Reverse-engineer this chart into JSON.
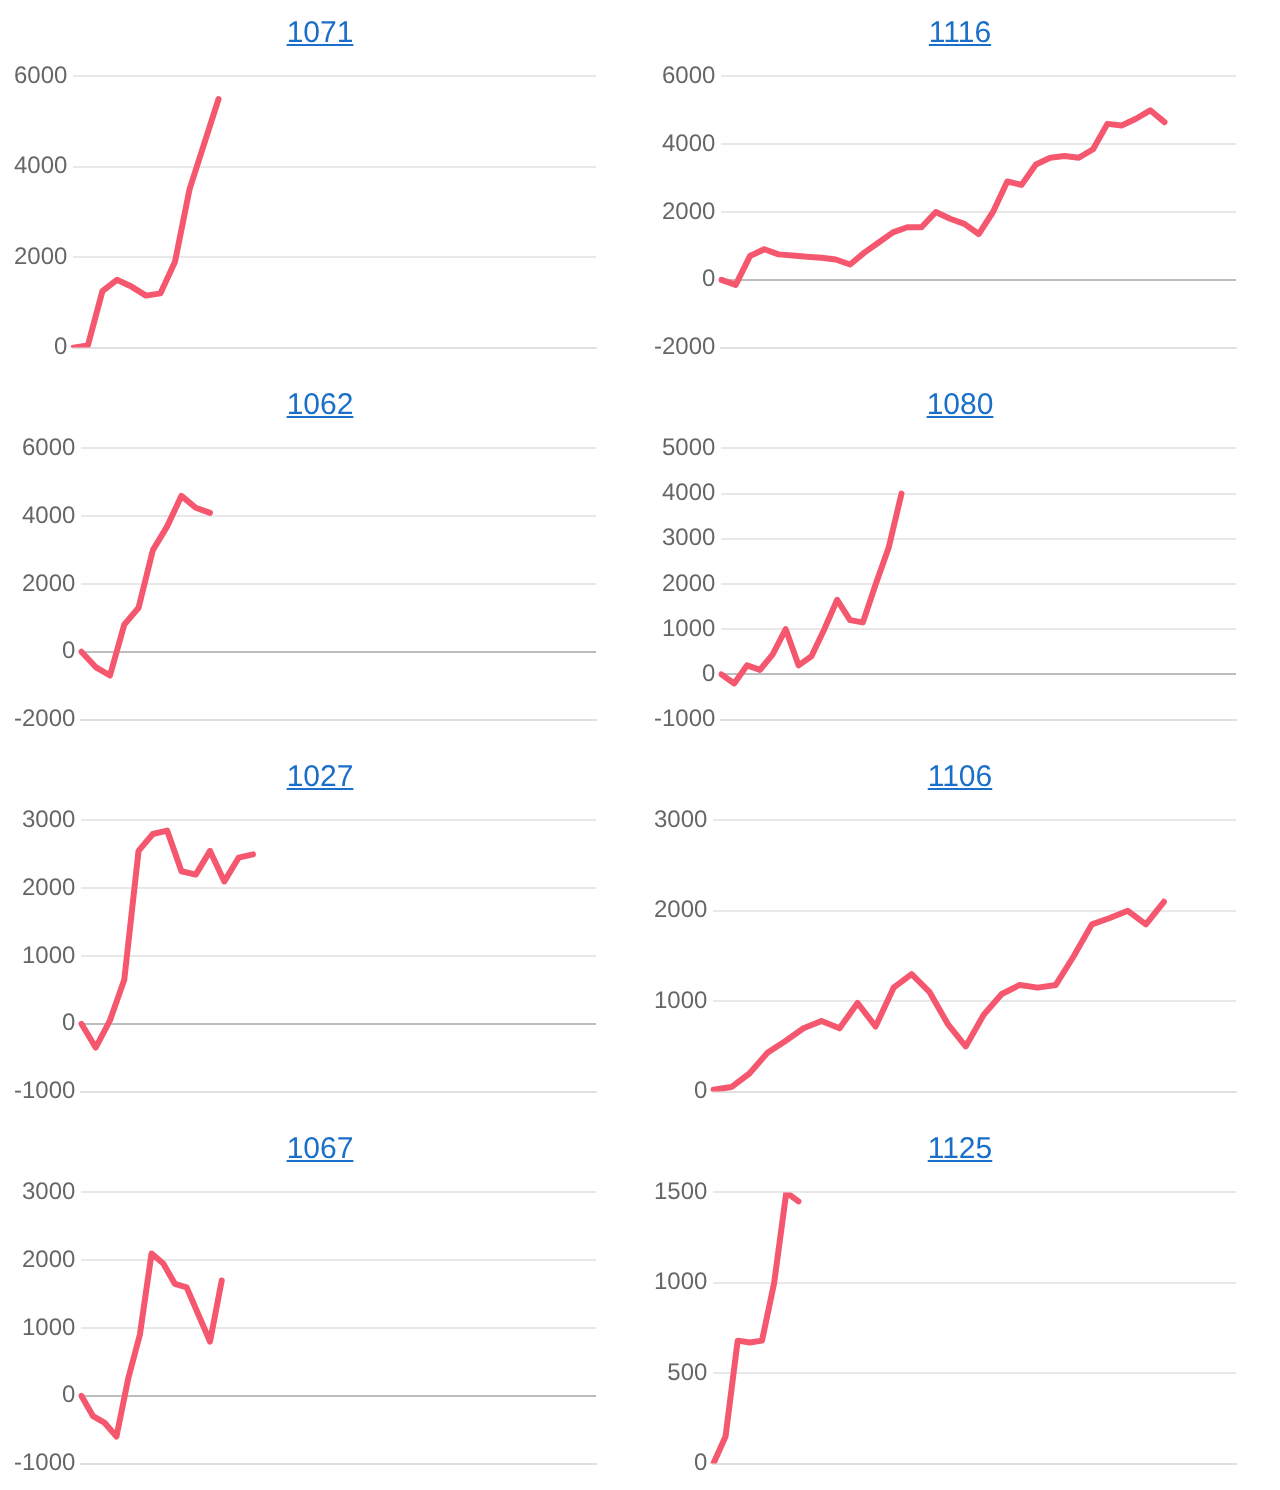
{
  "chart_data": [
    {
      "type": "line",
      "title": "1071",
      "categories": [
        null,
        null,
        null,
        null,
        null,
        null,
        null,
        null,
        null,
        null,
        null,
        null,
        null,
        null,
        null,
        null,
        null,
        null,
        null,
        null,
        null,
        null,
        null,
        null,
        null,
        null,
        null,
        null,
        null,
        null,
        null,
        null,
        null,
        null,
        null,
        null,
        null
      ],
      "series": [
        {
          "color": "#f5576f",
          "values": [
            0,
            50,
            1250,
            1500,
            1350,
            1150,
            1200,
            1900,
            3500,
            4500,
            5500,
            null,
            null,
            null,
            null,
            null,
            null,
            null,
            null,
            null,
            null,
            null,
            null,
            null,
            null,
            null,
            null,
            null,
            null,
            null,
            null,
            null,
            null,
            null,
            null,
            null,
            null
          ]
        }
      ],
      "ylim": [
        0,
        6000
      ],
      "yticks": [
        0,
        2000,
        4000,
        6000
      ],
      "grid": "y",
      "tick_labels": "y",
      "legend": false,
      "marker": "none",
      "line_style": "solid"
    },
    {
      "type": "line",
      "title": "1116",
      "categories": [
        null,
        null,
        null,
        null,
        null,
        null,
        null,
        null,
        null,
        null,
        null,
        null,
        null,
        null,
        null,
        null,
        null,
        null,
        null,
        null,
        null,
        null,
        null,
        null,
        null,
        null,
        null,
        null,
        null,
        null,
        null,
        null,
        null,
        null,
        null,
        null,
        null
      ],
      "series": [
        {
          "color": "#f5576f",
          "values": [
            0,
            -150,
            700,
            900,
            750,
            720,
            680,
            650,
            600,
            450,
            800,
            1100,
            1400,
            1550,
            1550,
            2000,
            1800,
            1650,
            1350,
            2000,
            2900,
            2800,
            3400,
            3600,
            3650,
            3600,
            3850,
            4600,
            4550,
            4750,
            5000,
            4650,
            null,
            null,
            null,
            null,
            null
          ]
        }
      ],
      "ylim": [
        -2000,
        6000
      ],
      "yticks": [
        -2000,
        0,
        2000,
        4000,
        6000
      ],
      "grid": "y",
      "tick_labels": "y",
      "legend": false,
      "marker": "none",
      "line_style": "solid"
    },
    {
      "type": "line",
      "title": "1062",
      "categories": [
        null,
        null,
        null,
        null,
        null,
        null,
        null,
        null,
        null,
        null,
        null,
        null,
        null,
        null,
        null,
        null,
        null,
        null,
        null,
        null,
        null,
        null,
        null,
        null,
        null,
        null,
        null,
        null,
        null,
        null,
        null,
        null,
        null,
        null,
        null,
        null,
        null
      ],
      "series": [
        {
          "color": "#f5576f",
          "values": [
            0,
            -450,
            -700,
            800,
            1300,
            3000,
            3700,
            4600,
            4250,
            4100,
            null,
            null,
            null,
            null,
            null,
            null,
            null,
            null,
            null,
            null,
            null,
            null,
            null,
            null,
            null,
            null,
            null,
            null,
            null,
            null,
            null,
            null,
            null,
            null,
            null,
            null,
            null
          ]
        }
      ],
      "ylim": [
        -2000,
        6000
      ],
      "yticks": [
        -2000,
        0,
        2000,
        4000,
        6000
      ],
      "grid": "y",
      "tick_labels": "y",
      "legend": false,
      "marker": "none",
      "line_style": "solid"
    },
    {
      "type": "line",
      "title": "1080",
      "categories": [
        null,
        null,
        null,
        null,
        null,
        null,
        null,
        null,
        null,
        null,
        null,
        null,
        null,
        null,
        null,
        null,
        null,
        null,
        null,
        null,
        null,
        null,
        null,
        null,
        null,
        null,
        null,
        null,
        null,
        null,
        null,
        null,
        null,
        null,
        null,
        null,
        null,
        null,
        null,
        null,
        null
      ],
      "series": [
        {
          "color": "#f5576f",
          "values": [
            0,
            -200,
            200,
            100,
            450,
            1000,
            200,
            400,
            1000,
            1650,
            1200,
            1150,
            2000,
            2800,
            4000,
            null,
            null,
            null,
            null,
            null,
            null,
            null,
            null,
            null,
            null,
            null,
            null,
            null,
            null,
            null,
            null,
            null,
            null,
            null,
            null,
            null,
            null,
            null,
            null,
            null,
            null
          ]
        }
      ],
      "ylim": [
        -1000,
        5000
      ],
      "yticks": [
        -1000,
        0,
        1000,
        2000,
        3000,
        4000,
        5000
      ],
      "grid": "y",
      "tick_labels": "y",
      "legend": false,
      "marker": "none",
      "line_style": "solid"
    },
    {
      "type": "line",
      "title": "1027",
      "categories": [
        null,
        null,
        null,
        null,
        null,
        null,
        null,
        null,
        null,
        null,
        null,
        null,
        null,
        null,
        null,
        null,
        null,
        null,
        null,
        null,
        null,
        null,
        null,
        null,
        null,
        null,
        null,
        null,
        null,
        null,
        null,
        null,
        null,
        null,
        null,
        null,
        null
      ],
      "series": [
        {
          "color": "#f5576f",
          "values": [
            0,
            -350,
            50,
            650,
            2550,
            2800,
            2850,
            2250,
            2200,
            2550,
            2100,
            2450,
            2500,
            null,
            null,
            null,
            null,
            null,
            null,
            null,
            null,
            null,
            null,
            null,
            null,
            null,
            null,
            null,
            null,
            null,
            null,
            null,
            null,
            null,
            null,
            null,
            null
          ]
        }
      ],
      "ylim": [
        -1000,
        3000
      ],
      "yticks": [
        -1000,
        0,
        1000,
        2000,
        3000
      ],
      "grid": "y",
      "tick_labels": "y",
      "legend": false,
      "marker": "none",
      "line_style": "solid"
    },
    {
      "type": "line",
      "title": "1106",
      "categories": [
        null,
        null,
        null,
        null,
        null,
        null,
        null,
        null,
        null,
        null,
        null,
        null,
        null,
        null,
        null,
        null,
        null,
        null,
        null,
        null,
        null,
        null,
        null,
        null,
        null,
        null,
        null,
        null,
        null,
        null
      ],
      "series": [
        {
          "color": "#f5576f",
          "values": [
            20,
            50,
            200,
            430,
            560,
            700,
            780,
            700,
            980,
            720,
            1150,
            1300,
            1100,
            750,
            500,
            850,
            1080,
            1180,
            1150,
            1180,
            1500,
            1850,
            1920,
            2000,
            1850,
            2100,
            null,
            null,
            null,
            null
          ]
        }
      ],
      "ylim": [
        0,
        3000
      ],
      "yticks": [
        0,
        1000,
        2000,
        3000
      ],
      "grid": "y",
      "tick_labels": "y",
      "legend": false,
      "marker": "none",
      "line_style": "solid"
    },
    {
      "type": "line",
      "title": "1067",
      "categories": [
        null,
        null,
        null,
        null,
        null,
        null,
        null,
        null,
        null,
        null,
        null,
        null,
        null,
        null,
        null,
        null,
        null,
        null,
        null,
        null,
        null,
        null,
        null,
        null,
        null,
        null,
        null,
        null,
        null,
        null,
        null,
        null,
        null,
        null,
        null,
        null,
        null,
        null,
        null,
        null,
        null,
        null,
        null,
        null,
        null
      ],
      "series": [
        {
          "color": "#f5576f",
          "values": [
            0,
            -300,
            -400,
            -600,
            250,
            900,
            2100,
            1950,
            1650,
            1600,
            1200,
            800,
            1700,
            null,
            null,
            null,
            null,
            null,
            null,
            null,
            null,
            null,
            null,
            null,
            null,
            null,
            null,
            null,
            null,
            null,
            null,
            null,
            null,
            null,
            null,
            null,
            null,
            null,
            null,
            null,
            null,
            null,
            null,
            null,
            null
          ]
        }
      ],
      "ylim": [
        -1000,
        3000
      ],
      "yticks": [
        -1000,
        0,
        1000,
        2000,
        3000
      ],
      "grid": "y",
      "tick_labels": "y",
      "legend": false,
      "marker": "none",
      "line_style": "solid"
    },
    {
      "type": "line",
      "title": "1125",
      "categories": [
        null,
        null,
        null,
        null,
        null,
        null,
        null,
        null,
        null,
        null,
        null,
        null,
        null,
        null,
        null,
        null,
        null,
        null,
        null,
        null,
        null,
        null,
        null,
        null,
        null,
        null,
        null,
        null,
        null,
        null,
        null,
        null,
        null,
        null,
        null,
        null,
        null,
        null,
        null,
        null,
        null,
        null,
        null,
        null
      ],
      "series": [
        {
          "color": "#f5576f",
          "values": [
            0,
            150,
            680,
            670,
            680,
            1000,
            1500,
            1450,
            null,
            null,
            null,
            null,
            null,
            null,
            null,
            null,
            null,
            null,
            null,
            null,
            null,
            null,
            null,
            null,
            null,
            null,
            null,
            null,
            null,
            null,
            null,
            null,
            null,
            null,
            null,
            null,
            null,
            null,
            null,
            null,
            null,
            null,
            null,
            null
          ]
        }
      ],
      "ylim": [
        0,
        1500
      ],
      "yticks": [
        0,
        500,
        1000,
        1500
      ],
      "grid": "y",
      "tick_labels": "y",
      "legend": false,
      "marker": "none",
      "line_style": "solid"
    }
  ]
}
